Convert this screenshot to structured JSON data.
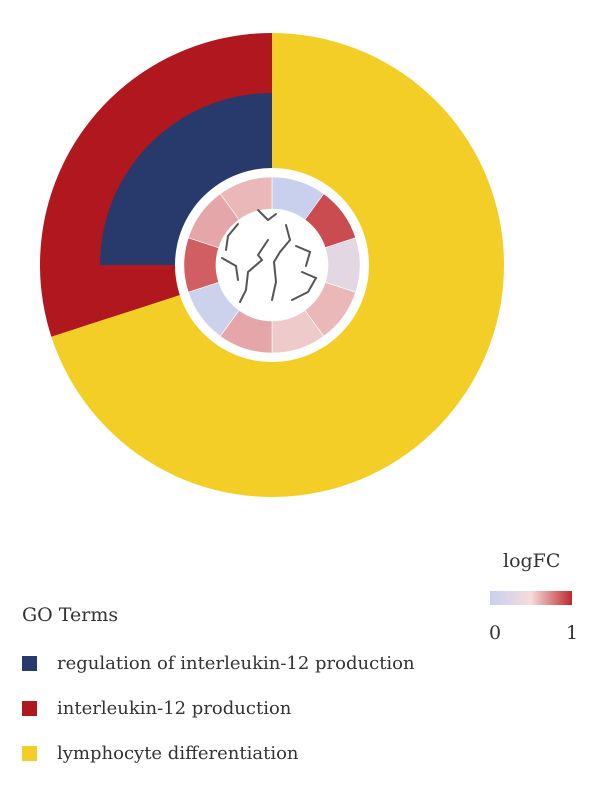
{
  "chart_data": {
    "type": "go-chord-circle",
    "go_terms_title": "GO Terms",
    "logfc_title": "logFC",
    "logfc_scale": {
      "min": 0,
      "max": 1,
      "min_label": "0",
      "max_label": "1",
      "low_color": "#c8d0ee",
      "mid_color": "#f4dcdc",
      "high_color": "#c0282e"
    },
    "terms": [
      {
        "id": "reg-il12",
        "name": "regulation of interleukin-12 production",
        "color": "#273a6b"
      },
      {
        "id": "il12",
        "name": "interleukin-12 production",
        "color": "#b0171e"
      },
      {
        "id": "lymph",
        "name": "lymphocyte differentiation",
        "color": "#f3ce26"
      }
    ],
    "outer_ring": [
      {
        "term": "il12",
        "share": 0.3
      },
      {
        "term": "lymph",
        "share": 0.7
      }
    ],
    "middle_ring": [
      {
        "term": "reg-il12",
        "share": 0.25
      },
      {
        "term": "il12",
        "share": 0.05
      }
    ],
    "inner_ring_logfc": [
      0.0,
      0.9,
      0.3,
      0.6,
      0.55,
      0.65,
      0.05,
      0.85,
      0.65,
      0.6
    ]
  }
}
